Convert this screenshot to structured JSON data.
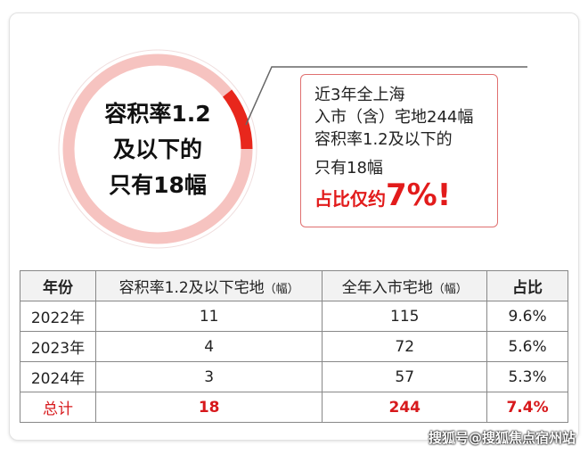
{
  "circle": {
    "lines": [
      "容积率1.2",
      "及以下的",
      "只有18幅"
    ],
    "share_percent": 7.4,
    "colors": {
      "ring": "#f6c3c0",
      "arc": "#e8271c"
    }
  },
  "callout": {
    "lines": [
      "近3年全上海",
      "入市（含）宅地244幅",
      "容积率1.2及以下的",
      "只有18幅"
    ],
    "highlight_prefix": "占比仅约",
    "highlight_value": "7%!"
  },
  "table": {
    "headers": [
      "年份",
      "容积率1.2及以下宅地",
      "（幅）",
      "全年入市宅地",
      "（幅）",
      "占比"
    ],
    "rows": [
      {
        "year": "2022年",
        "low": "11",
        "total": "115",
        "ratio": "9.6%"
      },
      {
        "year": "2023年",
        "low": "4",
        "total": "72",
        "ratio": "5.6%"
      },
      {
        "year": "2024年",
        "low": "3",
        "total": "57",
        "ratio": "5.3%"
      }
    ],
    "total": {
      "year": "总计",
      "low": "18",
      "total": "244",
      "ratio": "7.4%"
    }
  },
  "watermark": "搜狐号@搜狐焦点宿州站",
  "accent": "#d7191c"
}
